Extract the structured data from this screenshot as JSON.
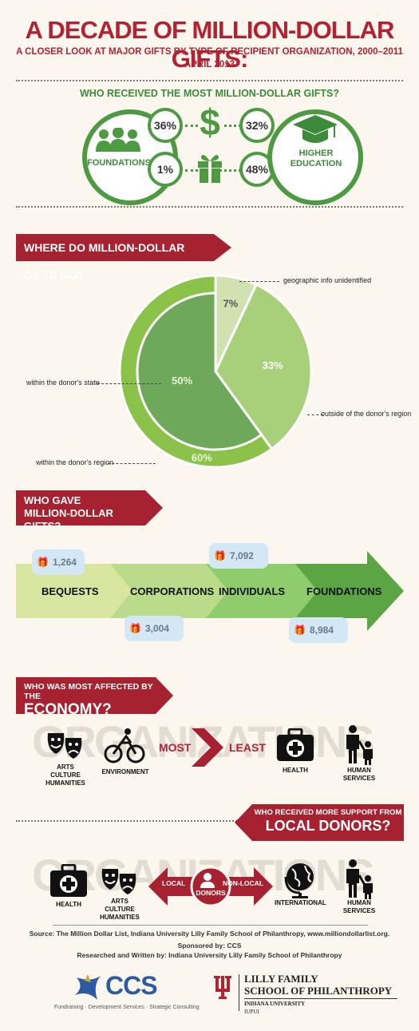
{
  "header": {
    "title": "A DECADE OF MILLION-DOLLAR GIFTS:",
    "subtitle": "A CLOSER LOOK AT MAJOR GIFTS BY TYPE OF RECIPIENT ORGANIZATION, 2000–2011",
    "date": "APRIL 2013"
  },
  "recipients": {
    "question": "WHO RECEIVED THE MOST MILLION-DOLLAR GIFTS?",
    "foundations_label": "FOUNDATIONS",
    "foundations_pct_count": "36%",
    "foundations_pct_amount": "1%",
    "higher_ed_label_1": "HIGHER",
    "higher_ed_label_2": "EDUCATION",
    "higher_ed_pct_count": "32%",
    "higher_ed_pct_amount": "48%",
    "dollar_symbol": "$"
  },
  "where": {
    "banner": "WHERE DO MILLION-DOLLAR GIFTS GO?",
    "labels": {
      "geo": "geographic info unidentified",
      "outside": "outside of the donor's region",
      "state": "within the donor's state",
      "region": "within the donor's region"
    },
    "chart_data": {
      "type": "pie",
      "slices": [
        {
          "label": "geographic info unidentified",
          "value": 7,
          "display": "7%",
          "color": "#cfe2b0"
        },
        {
          "label": "outside of the donor's region",
          "value": 33,
          "display": "33%",
          "color": "#a8cf7a"
        },
        {
          "label": "within the donor's region",
          "value": 60,
          "display": "60%",
          "color": "#8bc34a"
        },
        {
          "label": "within the donor's state",
          "value": 50,
          "display": "50%",
          "color": "#6ea85a"
        }
      ]
    }
  },
  "donors": {
    "banner_1": "WHO GAVE",
    "banner_2": "MILLION-DOLLAR GIFTS?",
    "items": [
      {
        "label": "BEQUESTS",
        "count": "1,264"
      },
      {
        "label": "CORPORATIONS",
        "count": "3,004"
      },
      {
        "label": "INDIVIDUALS",
        "count": "7,092"
      },
      {
        "label": "FOUNDATIONS",
        "count": "8,984"
      }
    ]
  },
  "economy": {
    "banner_1": "WHO WAS MOST AFFECTED BY THE",
    "banner_2": "ECONOMY?",
    "bg_word": "ORGANIZATIONS",
    "most": "MOST",
    "least": "LEAST",
    "arts_1": "ARTS",
    "arts_2": "CULTURE",
    "arts_3": "HUMANITIES",
    "environment": "ENVIRONMENT",
    "health": "HEALTH",
    "human_services": "HUMAN SERVICES"
  },
  "local": {
    "banner_1": "WHO RECEIVED MORE SUPPORT FROM",
    "banner_2": "LOCAL DONORS?",
    "bg_word": "ORGANIZATIONS",
    "local": "LOCAL",
    "non_local": "NON-LOCAL",
    "donors": "DONORS",
    "health": "HEALTH",
    "arts_1": "ARTS",
    "arts_2": "CULTURE",
    "arts_3": "HUMANITIES",
    "international": "INTERNATIONAL",
    "human_services": "HUMAN SERVICES"
  },
  "footer": {
    "source": "Source: The Million Dollar List, Indiana University Lilly Family School of Philanthropy, www.milliondollarlist.org.",
    "sponsored": "Sponsored by: CCS",
    "researched": "Researched and Written by:  Indiana University Lilly Family School of Philanthropy",
    "ccs_name": "CCS",
    "ccs_tagline": "Fundraising · Development Services · Strategic Consulting",
    "lilly_1": "LILLY FAMILY",
    "lilly_2": "SCHOOL OF PHILANTHROPY",
    "iu": "INDIANA UNIVERSITY",
    "iupui": "IUPUI"
  }
}
